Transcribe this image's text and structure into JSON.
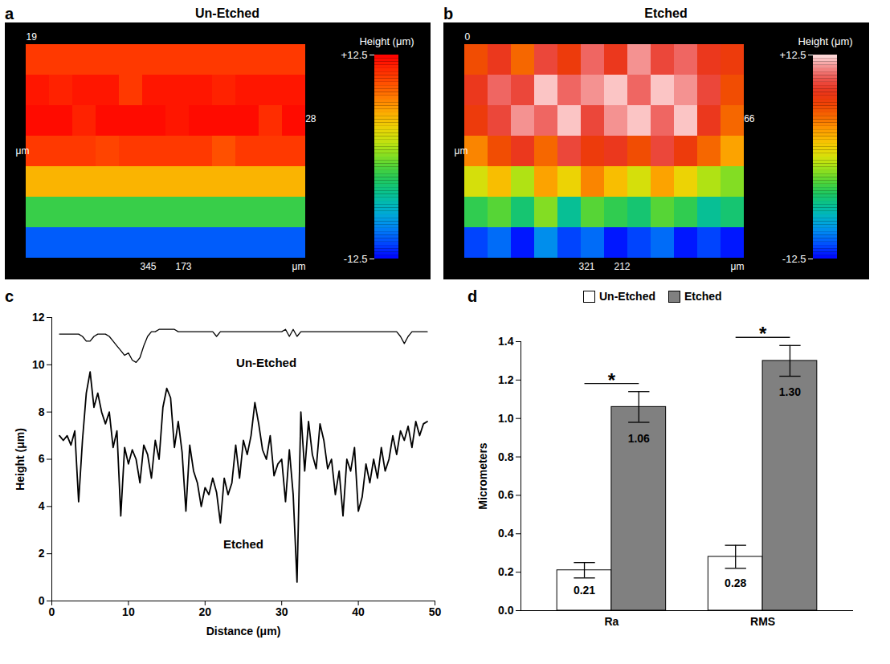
{
  "chart_data": [
    {
      "panel": "a",
      "type": "surface",
      "title": "Un-Etched",
      "annotations": [
        "19",
        "μm",
        "28",
        "345",
        "173",
        "μm"
      ],
      "cells": [
        [
          10,
          10,
          10,
          10,
          10,
          10,
          10,
          10,
          10,
          10,
          10,
          10
        ],
        [
          11.5,
          11,
          11.5,
          11.5,
          10,
          11.5,
          11.5,
          11.5,
          11,
          11.5,
          11.5,
          11.5
        ],
        [
          12,
          12,
          11,
          12,
          12,
          12,
          11.5,
          12,
          12,
          12,
          10.5,
          12
        ],
        [
          10,
          10,
          10,
          9.5,
          10,
          10,
          10,
          10,
          9,
          10,
          10,
          10
        ],
        [
          5,
          5,
          5,
          5,
          5,
          5,
          5,
          5,
          5,
          5,
          5,
          5
        ],
        [
          -2,
          -2,
          -2,
          -2,
          -2,
          -2,
          -2,
          -2,
          -2,
          -2,
          -2,
          -2
        ],
        [
          -10,
          -10,
          -10,
          -10,
          -10,
          -10,
          -10,
          -10,
          -10,
          -10,
          -10,
          -10
        ]
      ],
      "colorbar": {
        "label": "Height (μm)",
        "range": [
          -12.5,
          12.5
        ],
        "ticks": [
          {
            "value": 12.5,
            "label": "+12.5"
          },
          {
            "value": -12.5,
            "label": "-12.5"
          }
        ],
        "colors": [
          "#0000ff",
          "#00c0ff",
          "#00c040",
          "#ffff00",
          "#ff7000",
          "#ff0000"
        ]
      }
    },
    {
      "panel": "b",
      "type": "surface",
      "title": "Etched",
      "annotations": [
        "0",
        "μm",
        "66",
        "321",
        "212",
        "μm"
      ],
      "cells": [
        [
          6,
          8,
          5,
          9,
          7,
          10,
          8,
          11,
          9,
          10,
          8,
          7
        ],
        [
          8,
          10,
          9,
          12,
          10,
          11,
          12,
          10,
          12,
          11,
          9,
          6
        ],
        [
          7,
          9,
          11,
          10,
          12,
          9,
          11,
          12,
          10,
          12,
          8,
          5
        ],
        [
          4,
          6,
          8,
          5,
          9,
          7,
          8,
          6,
          9,
          7,
          5,
          3
        ],
        [
          0,
          2,
          -1,
          3,
          1,
          4,
          2,
          0,
          3,
          1,
          -1,
          -2
        ],
        [
          -4,
          -3,
          -5,
          -2,
          -6,
          -3,
          -4,
          -5,
          -3,
          -4,
          -6,
          -5
        ],
        [
          -11,
          -10,
          -12,
          -9,
          -11,
          -10,
          -12,
          -11,
          -10,
          -12,
          -11,
          -12
        ]
      ],
      "colorbar": {
        "label": "Height (μm)",
        "range": [
          -12.5,
          12.5
        ],
        "ticks": [
          {
            "value": 12.5,
            "label": "+12.5"
          },
          {
            "value": -12.5,
            "label": "-12.5"
          }
        ],
        "colors": [
          "#0000ff",
          "#00c0ff",
          "#00c040",
          "#ffff00",
          "#ff8000",
          "#e00000",
          "#ffe0e0"
        ]
      }
    },
    {
      "panel": "c",
      "type": "line",
      "x_label": "Distance (μm)",
      "y_label": "Height (μm)",
      "x": [
        1,
        1.5,
        2,
        2.5,
        3,
        3.5,
        4,
        4.5,
        5,
        5.5,
        6,
        6.5,
        7,
        7.5,
        8,
        8.5,
        9,
        9.5,
        10,
        10.5,
        11,
        11.5,
        12,
        12.5,
        13,
        13.5,
        14,
        14.5,
        15,
        15.5,
        16,
        16.5,
        17,
        17.5,
        18,
        18.5,
        19,
        19.5,
        20,
        20.5,
        21,
        21.5,
        22,
        22.5,
        23,
        23.5,
        24,
        24.5,
        25,
        25.5,
        26,
        26.5,
        27,
        27.5,
        28,
        28.5,
        29,
        29.5,
        30,
        30.5,
        31,
        31.5,
        32,
        32.5,
        33,
        33.5,
        34,
        34.5,
        35,
        35.5,
        36,
        36.5,
        37,
        37.5,
        38,
        38.5,
        39,
        39.5,
        40,
        40.5,
        41,
        41.5,
        42,
        42.5,
        43,
        43.5,
        44,
        44.5,
        45,
        45.5,
        46,
        46.5,
        47,
        47.5,
        48,
        48.5,
        49
      ],
      "series": [
        {
          "name": "Un-Etched",
          "color": "#000000",
          "values": [
            11.3,
            11.3,
            11.3,
            11.3,
            11.3,
            11.3,
            11.2,
            11.0,
            11.0,
            11.2,
            11.3,
            11.3,
            11.3,
            11.2,
            11.0,
            10.8,
            10.6,
            10.4,
            10.5,
            10.2,
            10.1,
            10.3,
            10.8,
            11.2,
            11.4,
            11.4,
            11.5,
            11.5,
            11.5,
            11.5,
            11.5,
            11.4,
            11.4,
            11.4,
            11.4,
            11.4,
            11.4,
            11.4,
            11.4,
            11.4,
            11.4,
            11.2,
            11.4,
            11.4,
            11.4,
            11.4,
            11.4,
            11.4,
            11.4,
            11.4,
            11.4,
            11.4,
            11.4,
            11.4,
            11.4,
            11.4,
            11.4,
            11.4,
            11.4,
            11.5,
            11.2,
            11.5,
            11.2,
            11.4,
            11.4,
            11.4,
            11.4,
            11.4,
            11.4,
            11.4,
            11.4,
            11.4,
            11.4,
            11.4,
            11.4,
            11.4,
            11.4,
            11.4,
            11.4,
            11.4,
            11.4,
            11.4,
            11.4,
            11.4,
            11.4,
            11.4,
            11.4,
            11.4,
            11.4,
            11.2,
            10.9,
            11.2,
            11.4,
            11.4,
            11.4,
            11.4,
            11.4
          ]
        },
        {
          "name": "Etched",
          "color": "#000000",
          "values": [
            7.0,
            6.8,
            7.0,
            6.6,
            7.2,
            4.2,
            6.8,
            8.8,
            9.7,
            8.2,
            8.8,
            8.0,
            7.5,
            8.0,
            6.5,
            7.2,
            3.6,
            6.5,
            5.8,
            6.4,
            6.0,
            5.0,
            6.6,
            6.2,
            5.2,
            6.8,
            6.0,
            8.2,
            9.0,
            8.6,
            6.5,
            7.6,
            6.3,
            3.8,
            6.6,
            5.5,
            5.0,
            4.0,
            4.8,
            4.5,
            5.2,
            4.6,
            3.3,
            5.2,
            4.5,
            5.0,
            6.6,
            5.2,
            6.8,
            6.2,
            7.0,
            8.4,
            7.5,
            6.4,
            6.0,
            7.0,
            5.3,
            5.8,
            6.0,
            4.2,
            6.4,
            4.5,
            0.8,
            8.0,
            5.5,
            7.6,
            6.2,
            5.6,
            7.5,
            6.8,
            5.6,
            6.0,
            4.5,
            5.5,
            3.6,
            6.0,
            5.5,
            6.5,
            3.8,
            4.4,
            5.8,
            5.0,
            6.0,
            5.2,
            6.5,
            5.5,
            6.0,
            7.0,
            6.2,
            7.2,
            6.8,
            7.4,
            6.5,
            7.6,
            7.0,
            7.5,
            7.6
          ]
        }
      ],
      "xlim": [
        0,
        50
      ],
      "xticks": [
        0,
        10,
        20,
        30,
        40,
        50
      ],
      "ylim": [
        0,
        12
      ],
      "yticks": [
        0,
        2,
        4,
        6,
        8,
        10,
        12
      ]
    },
    {
      "panel": "d",
      "type": "bar",
      "y_label": "Micrometers",
      "categories": [
        "Ra",
        "RMS"
      ],
      "series": [
        {
          "name": "Un-Etched",
          "color": "#ffffff",
          "values": [
            0.21,
            0.28
          ],
          "errors": [
            0.04,
            0.06
          ]
        },
        {
          "name": "Etched",
          "color": "#808080",
          "values": [
            1.06,
            1.3
          ],
          "value_labels": [
            "1.06",
            "1.30"
          ],
          "errors": [
            0.08,
            0.08
          ]
        }
      ],
      "ylim": [
        0,
        1.4
      ],
      "yticks": [
        {
          "value": 0,
          "label": "0.0"
        },
        0.2,
        0.4,
        0.6,
        0.8,
        {
          "value": 1,
          "label": "1.0"
        },
        1.2,
        1.4
      ],
      "data_labels": true,
      "legend": "top",
      "annotations": [
        {
          "category": "Ra",
          "text": "*"
        },
        {
          "category": "RMS",
          "text": "*"
        }
      ]
    }
  ]
}
